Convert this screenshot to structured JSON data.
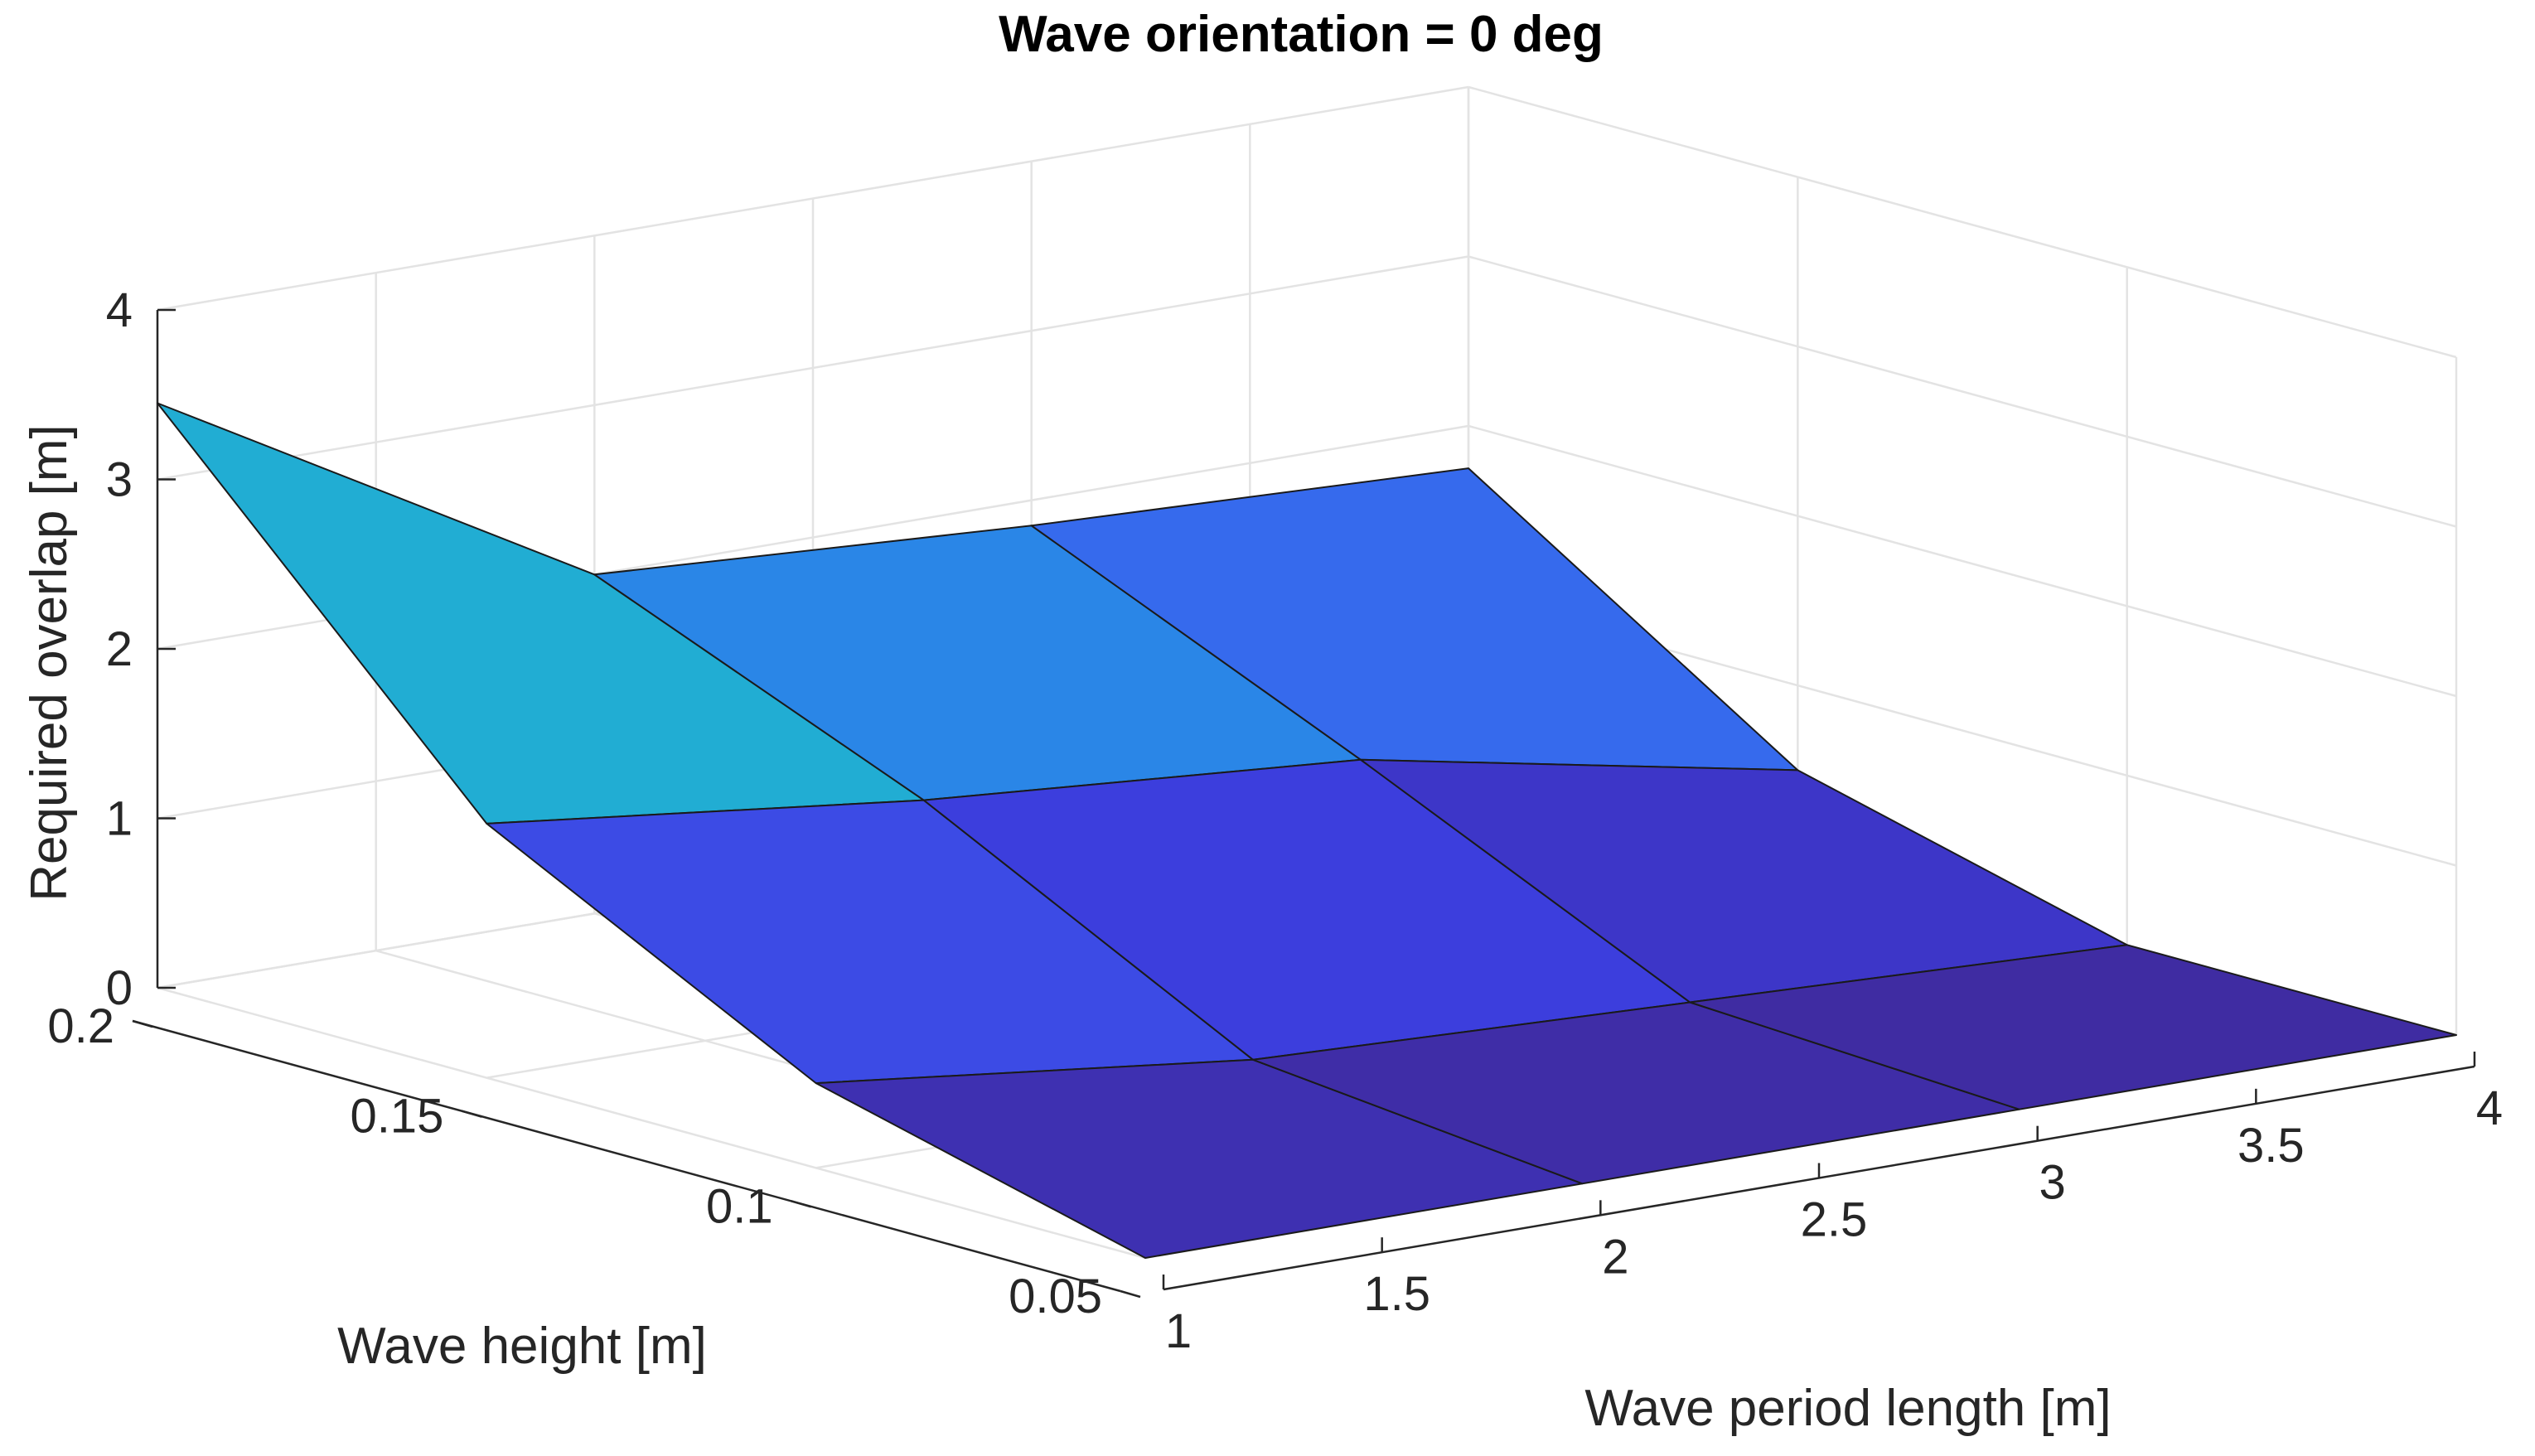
{
  "chart_data": {
    "type": "surface3d",
    "title": "Wave orientation = 0 deg",
    "xlabel": "Wave period length [m]",
    "ylabel": "Wave height [m]",
    "zlabel": "Required overlap [m]",
    "x_ticks": [
      "1",
      "1.5",
      "2",
      "2.5",
      "3",
      "3.5",
      "4"
    ],
    "y_ticks": [
      "0.05",
      "0.1",
      "0.15",
      "0.2"
    ],
    "z_ticks": [
      "0",
      "1",
      "2",
      "3",
      "4"
    ],
    "xlim": [
      1,
      4
    ],
    "ylim": [
      0.05,
      0.2
    ],
    "zlim": [
      0,
      4
    ],
    "x": [
      1,
      2,
      3,
      4
    ],
    "y": [
      0.05,
      0.1,
      0.15,
      0.2
    ],
    "z": [
      [
        0.0,
        0.0,
        0.0,
        0.0
      ],
      [
        0.5,
        0.2,
        0.1,
        0.0
      ],
      [
        1.5,
        1.2,
        1.0,
        0.5
      ],
      [
        3.45,
        2.0,
        1.85,
        1.75
      ]
    ],
    "colormap": "parula",
    "colors": {
      "low": "#3f2b9f",
      "mid_low": "#3c3cdc",
      "mid": "#3d5cf0",
      "mid_high": "#1aa8e0",
      "high": "#45c98a",
      "edge": "#1a1a1a",
      "grid": "#e3e3e3",
      "axis": "#262626"
    }
  }
}
